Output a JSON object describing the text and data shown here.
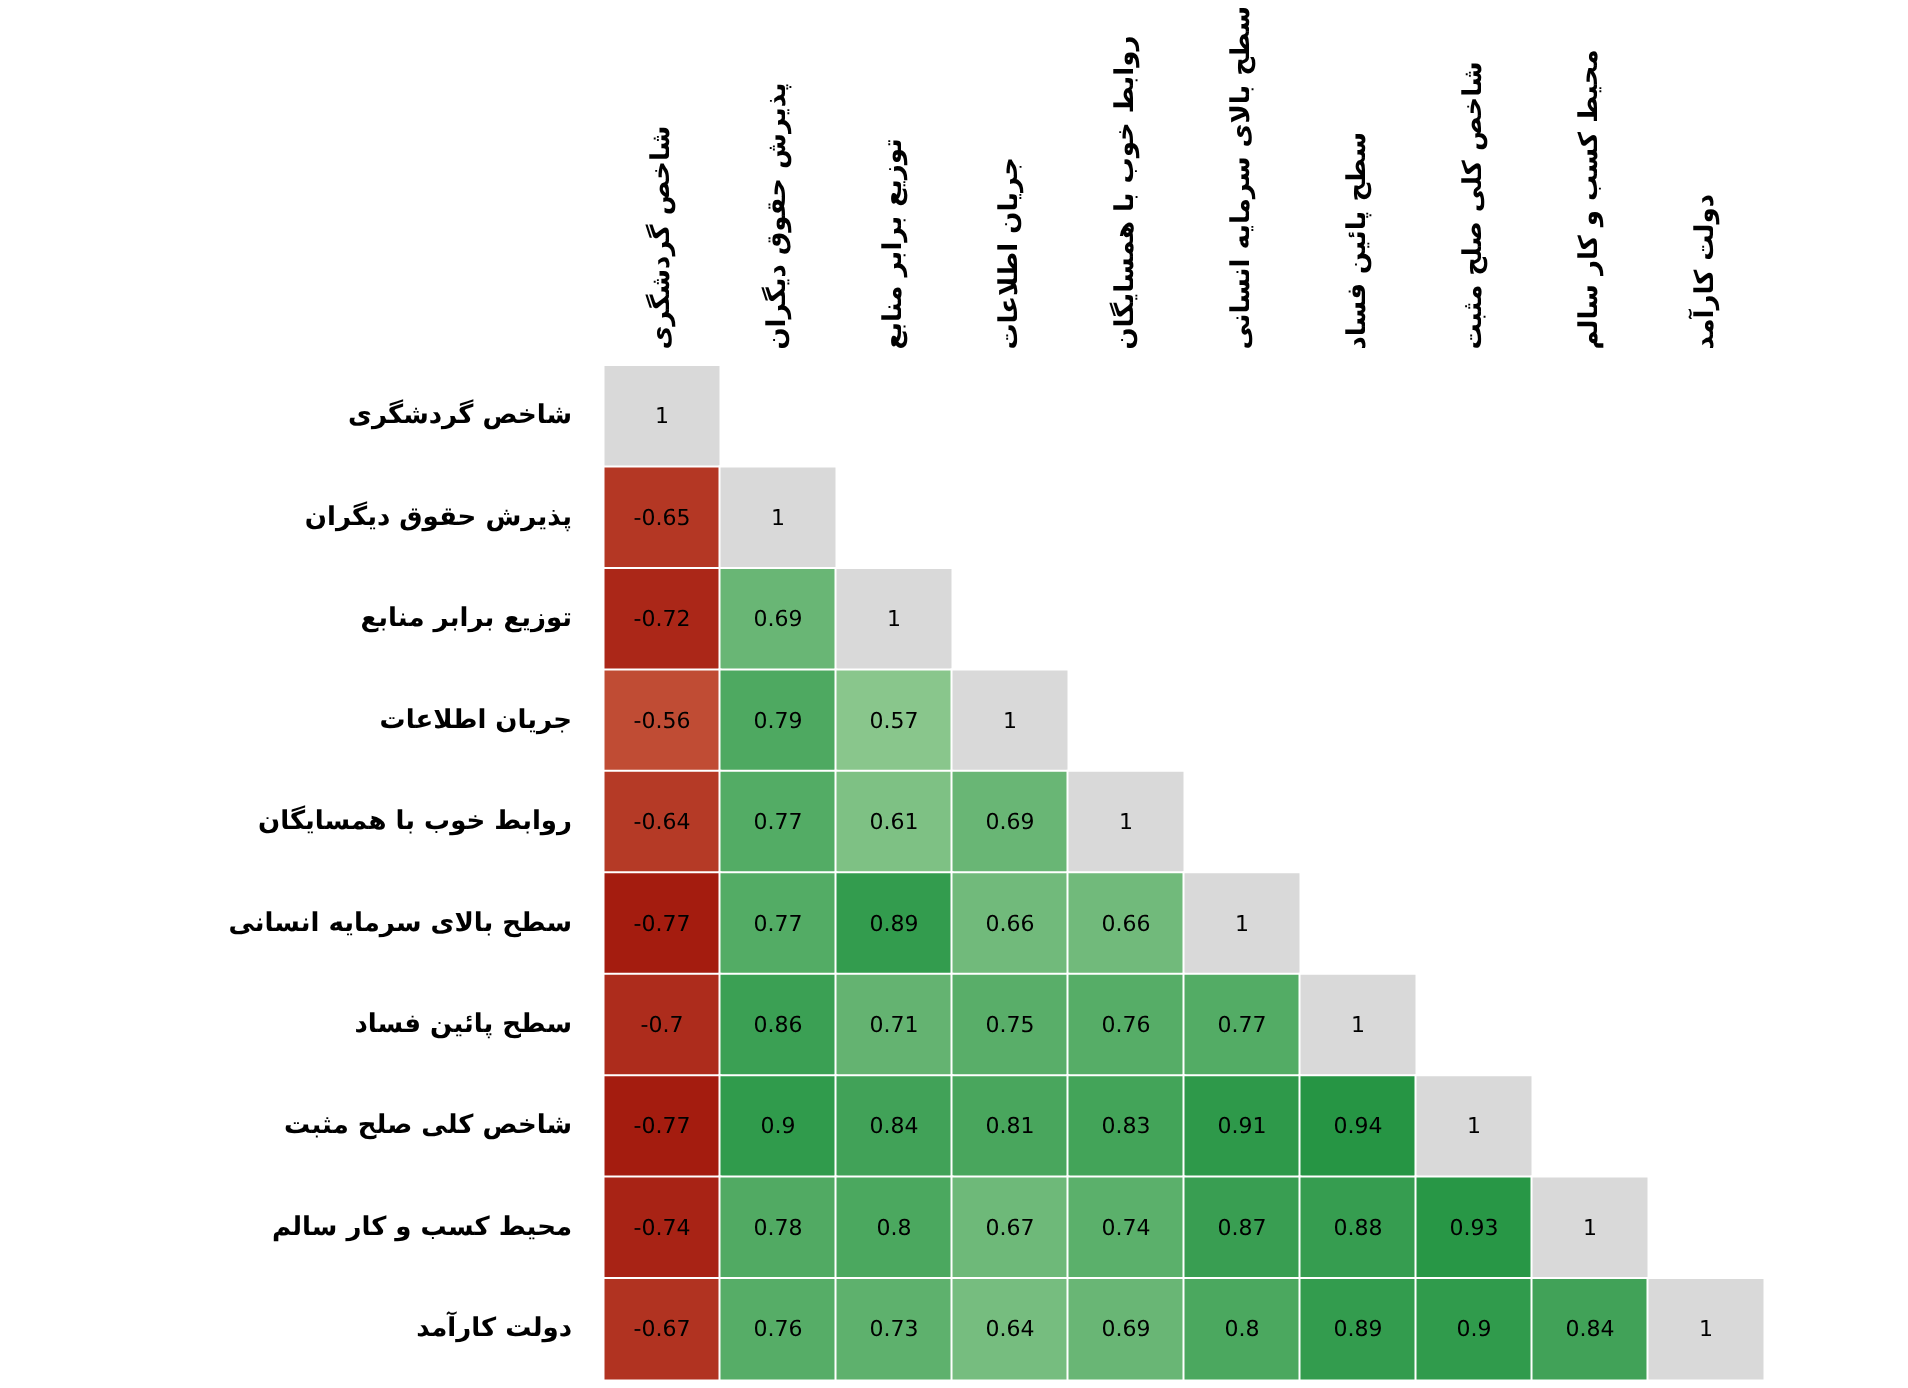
{
  "chart_data": {
    "type": "heatmap",
    "categories": [
      "شاخص گردشگری",
      "پذیرش حقوق دیگران",
      "توزیع برابر منابع",
      "جریان اطلاعات",
      "روابط خوب با همسایگان",
      "سطح بالای سرمایه انسانی",
      "سطح پائین فساد",
      "شاخص کلی صلح مثبت",
      "محیط کسب و کار سالم",
      "دولت کارآمد"
    ],
    "y_categories": [
      "شاخص گردشگری",
      "پذیرش حقوق دیگران",
      "توزیع برابر منابع",
      "جریان اطلاعات",
      "روابط خوب با همسایگان",
      "سطح بالای سرمایه انسانی",
      "سطح پائین فساد",
      "شاخص کلی صلح مثبت",
      "محیط کسب و کار سالم",
      "دولت کارآمد"
    ],
    "cells": [
      [
        1,
        null,
        null,
        null,
        null,
        null,
        null,
        null,
        null,
        null
      ],
      [
        -0.65,
        1,
        null,
        null,
        null,
        null,
        null,
        null,
        null,
        null
      ],
      [
        -0.72,
        0.69,
        1,
        null,
        null,
        null,
        null,
        null,
        null,
        null
      ],
      [
        -0.56,
        0.79,
        0.57,
        1,
        null,
        null,
        null,
        null,
        null,
        null
      ],
      [
        -0.64,
        0.77,
        0.61,
        0.69,
        1,
        null,
        null,
        null,
        null,
        null
      ],
      [
        -0.77,
        0.77,
        0.89,
        0.66,
        0.66,
        1,
        null,
        null,
        null,
        null
      ],
      [
        -0.7,
        0.86,
        0.71,
        0.75,
        0.76,
        0.77,
        1,
        null,
        null,
        null
      ],
      [
        -0.77,
        0.9,
        0.84,
        0.81,
        0.83,
        0.91,
        0.94,
        1,
        null,
        null
      ],
      [
        -0.74,
        0.78,
        0.8,
        0.67,
        0.74,
        0.87,
        0.88,
        0.93,
        1,
        null
      ],
      [
        -0.67,
        0.76,
        0.73,
        0.64,
        0.69,
        0.8,
        0.89,
        0.9,
        0.84,
        1
      ]
    ],
    "data_labels": true
  }
}
